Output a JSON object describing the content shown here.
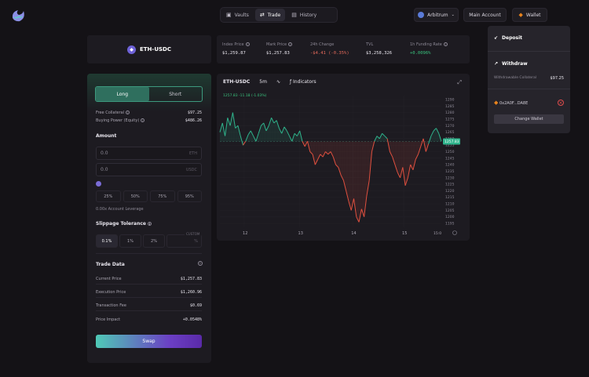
{
  "nav": {
    "tabs": [
      {
        "label": "Vaults",
        "icon": "vault-icon"
      },
      {
        "label": "Trade",
        "icon": "trade-icon"
      },
      {
        "label": "History",
        "icon": "history-icon"
      }
    ],
    "chain": "Arbitrum",
    "account_label": "Main Account",
    "wallet_label": "Wallet"
  },
  "market": {
    "pair": "ETH-USDC",
    "stats": [
      {
        "label": "Index Price",
        "value": "$1,259.87"
      },
      {
        "label": "Mark Price",
        "value": "$1,257.83"
      },
      {
        "label": "24h Change",
        "value": "-$4.41 (-0.35%)"
      },
      {
        "label": "TVL",
        "value": "$3,258,326"
      },
      {
        "label": "1h Funding Rate",
        "value": "+0.0096%"
      }
    ]
  },
  "trade": {
    "long_label": "Long",
    "short_label": "Short",
    "free_collateral_label": "Free Collateral",
    "free_collateral": "$97.25",
    "buying_power_label": "Buying Power (Equity)",
    "buying_power": "$486.26",
    "amount_label": "Amount",
    "amount_eth": "0.0",
    "amount_eth_unit": "ETH",
    "amount_usdc": "0.0",
    "amount_usdc_unit": "USDC",
    "percent_options": [
      "25%",
      "50%",
      "75%",
      "95%"
    ],
    "leverage_text": "0.00x Account Leverage",
    "slippage_label": "Slippage Tolerance",
    "slippage_options": [
      "0.1%",
      "1%",
      "2%"
    ],
    "custom_label": "CUSTOM",
    "custom_unit": "%",
    "trade_data_label": "Trade Data",
    "trade_data": [
      {
        "label": "Current Price",
        "value": "$1,257.83"
      },
      {
        "label": "Execution Price",
        "value": "$1,260.96"
      },
      {
        "label": "Transaction Fee",
        "value": "$0.69"
      },
      {
        "label": "Price Impact",
        "value": "+0.0548%"
      }
    ],
    "swap_label": "Swap"
  },
  "chart_panel": {
    "symbol": "ETH-USDC",
    "interval": "5m",
    "indicators_label": "Indicators",
    "ohlc_text": "1257.83 -11.18 (-1.03%)",
    "last_price_tag": "1257.83",
    "time_tag": "15:0",
    "colors": {
      "up": "#2fb48c",
      "down": "#e0503f"
    }
  },
  "chart_data": {
    "type": "line",
    "x_ticks": [
      "12",
      "13",
      "14",
      "15"
    ],
    "y_ticks": [
      1290,
      1285,
      1280,
      1275,
      1270,
      1265,
      1260,
      1255,
      1250,
      1245,
      1240,
      1235,
      1230,
      1225,
      1220,
      1215,
      1210,
      1205,
      1200,
      1195
    ],
    "ylim": [
      1192,
      1293
    ],
    "baseline": 1257.83,
    "y": [
      1265,
      1272,
      1262,
      1276,
      1270,
      1280,
      1268,
      1270,
      1262,
      1255,
      1258,
      1263,
      1266,
      1262,
      1258,
      1264,
      1270,
      1272,
      1266,
      1270,
      1276,
      1272,
      1274,
      1268,
      1264,
      1269,
      1266,
      1262,
      1258,
      1264,
      1262,
      1266,
      1258,
      1254,
      1258,
      1250,
      1248,
      1240,
      1244,
      1248,
      1246,
      1250,
      1248,
      1250,
      1246,
      1240,
      1238,
      1232,
      1228,
      1220,
      1212,
      1205,
      1214,
      1200,
      1196,
      1206,
      1200,
      1216,
      1228,
      1250,
      1258,
      1262,
      1260,
      1264,
      1262,
      1260,
      1250,
      1246,
      1240,
      1234,
      1230,
      1238,
      1224,
      1230,
      1240,
      1236,
      1244,
      1248,
      1254,
      1260,
      1250,
      1256,
      1262,
      1266,
      1268,
      1264,
      1258
    ]
  },
  "wallet_menu": {
    "deposit_label": "Deposit",
    "withdraw_label": "Withdraw",
    "withdrawable_label": "Withdrawable Collateral",
    "withdrawable_value": "$97.25",
    "address": "0x2A0F...DA8E",
    "change_wallet_label": "Change Wallet"
  }
}
